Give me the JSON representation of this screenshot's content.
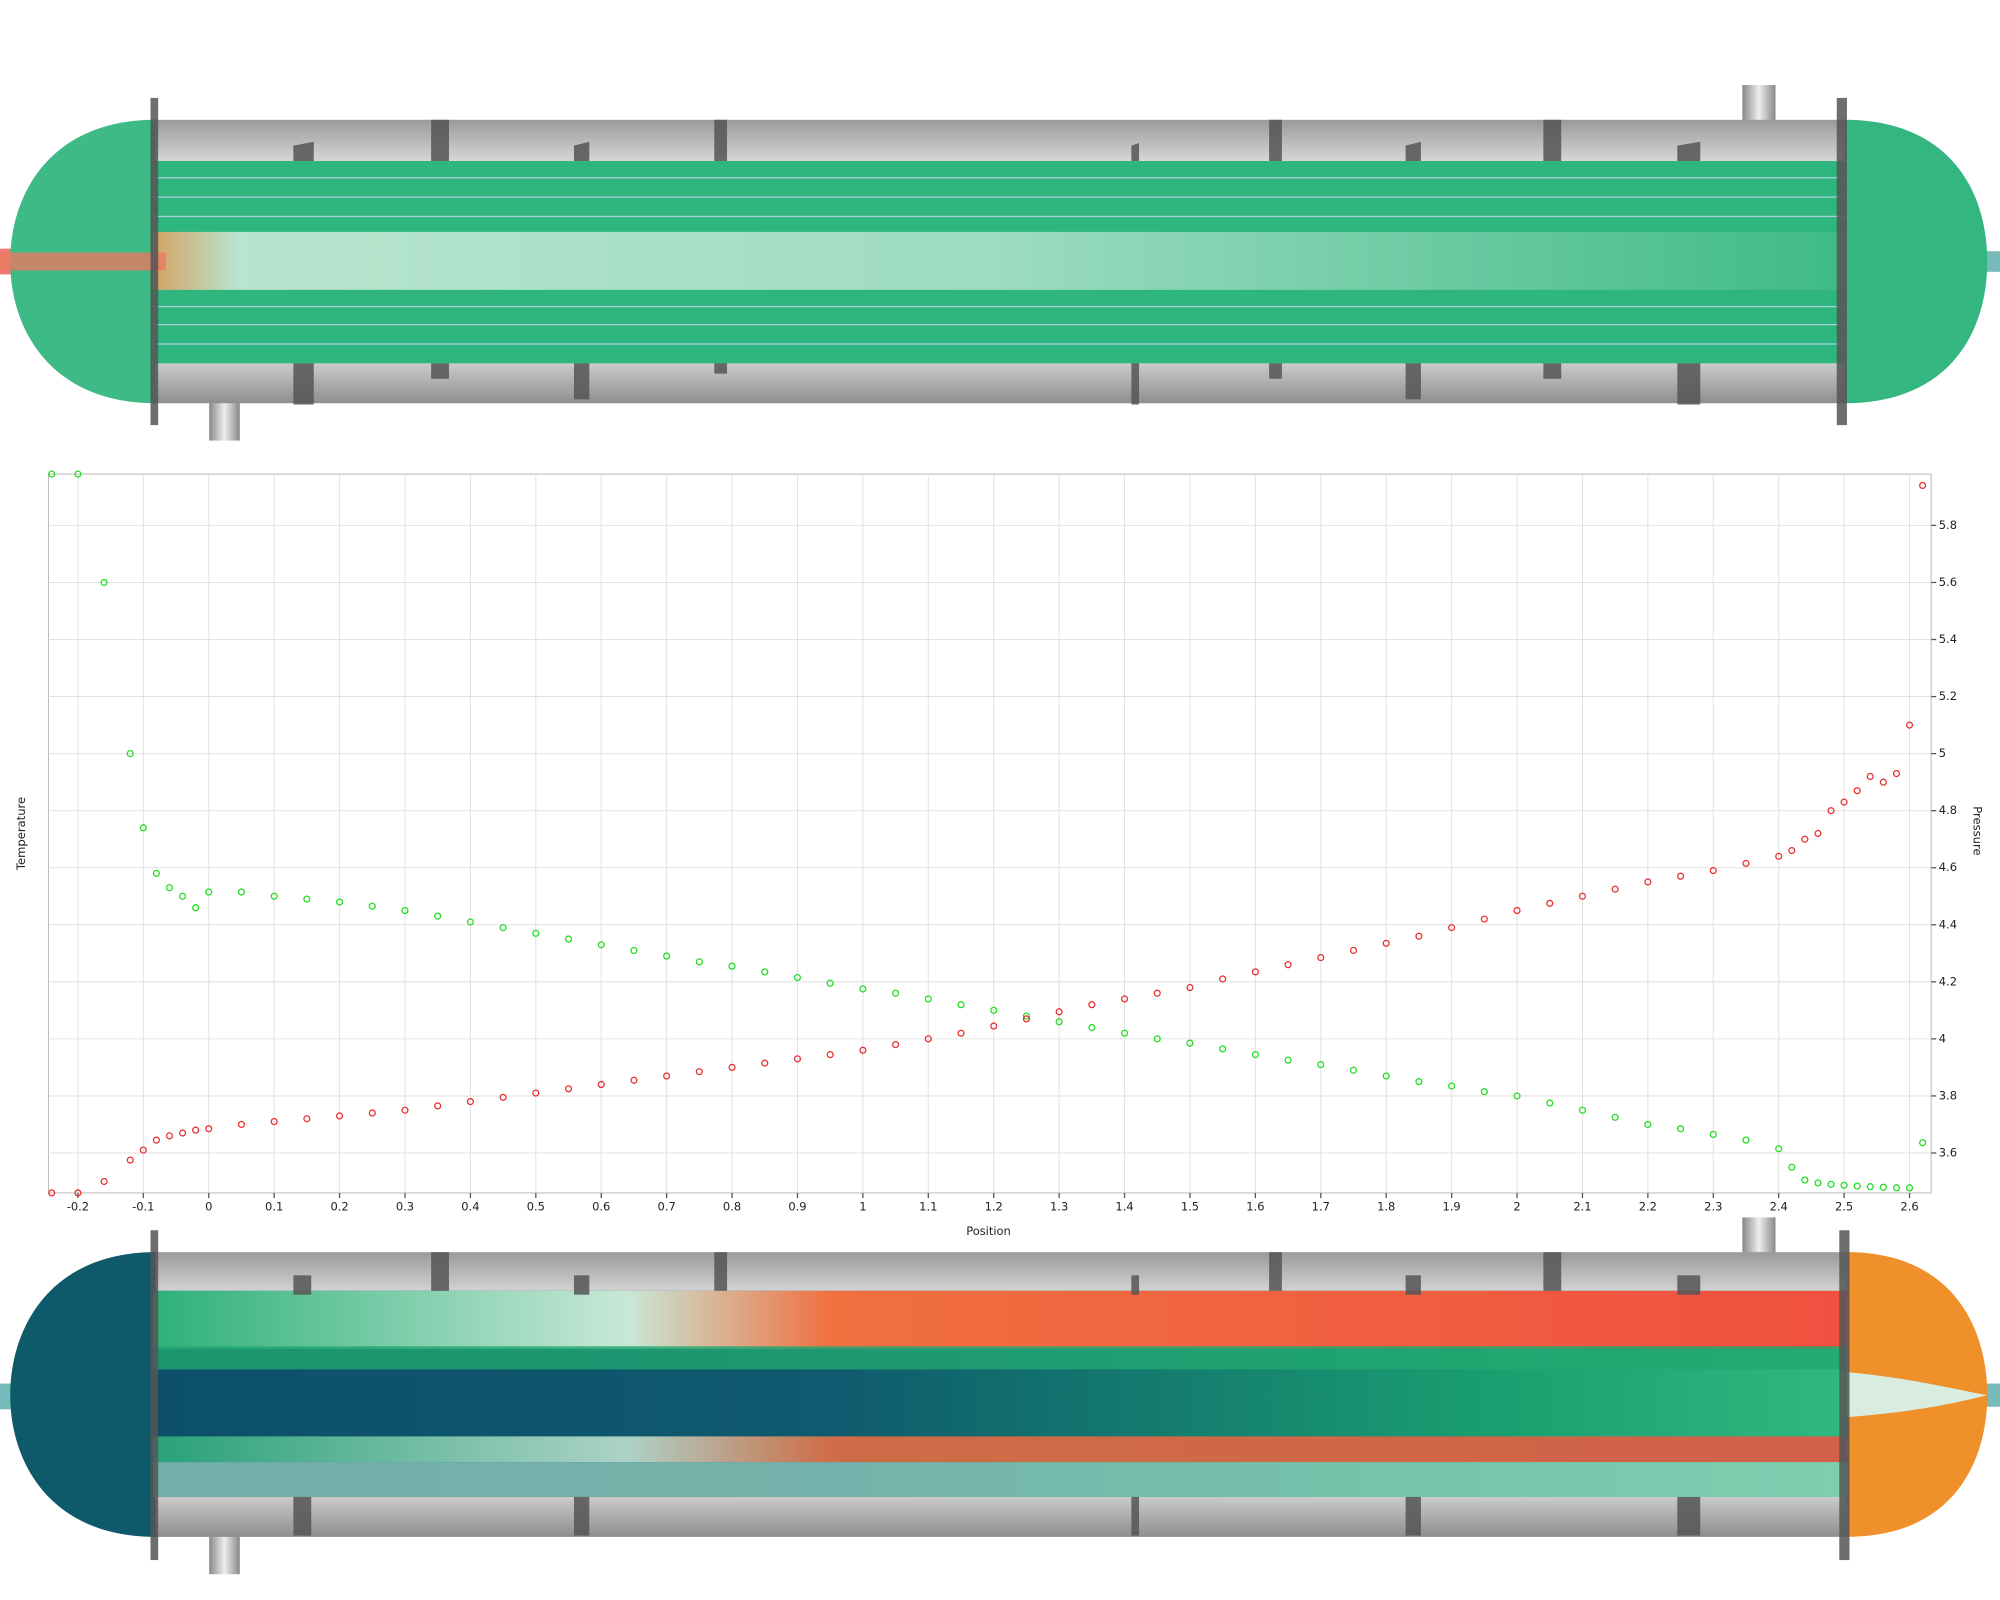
{
  "chart_data": {
    "type": "scatter",
    "x_label": "Position",
    "y_label": "Temperature",
    "y2_label": "Pressure",
    "x": [
      -0.24,
      -0.2,
      -0.16,
      -0.12,
      -0.1,
      -0.08,
      -0.06,
      -0.04,
      -0.02,
      0,
      0.05,
      0.1,
      0.15,
      0.2,
      0.25,
      0.3,
      0.35,
      0.4,
      0.45,
      0.5,
      0.55,
      0.6,
      0.65,
      0.7,
      0.75,
      0.8,
      0.85,
      0.9,
      0.95,
      1,
      1.05,
      1.1,
      1.15,
      1.2,
      1.25,
      1.3,
      1.35,
      1.4,
      1.45,
      1.5,
      1.55,
      1.6,
      1.65,
      1.7,
      1.75,
      1.8,
      1.85,
      1.9,
      1.95,
      2,
      2.05,
      2.1,
      2.15,
      2.2,
      2.25,
      2.3,
      2.35,
      2.4,
      2.42,
      2.44,
      2.46,
      2.48,
      2.5,
      2.52,
      2.54,
      2.56,
      2.58,
      2.6,
      2.62
    ],
    "series": [
      {
        "name": "Temperature",
        "color": "#22dd22",
        "axis": "y",
        "values": [
          5.98,
          5.98,
          5.6,
          5.0,
          4.74,
          4.58,
          4.53,
          4.5,
          4.46,
          4.515,
          4.515,
          4.5,
          4.49,
          4.48,
          4.465,
          4.45,
          4.43,
          4.41,
          4.39,
          4.37,
          4.35,
          4.33,
          4.31,
          4.29,
          4.27,
          4.255,
          4.235,
          4.215,
          4.195,
          4.175,
          4.16,
          4.14,
          4.12,
          4.1,
          4.08,
          4.06,
          4.04,
          4.02,
          4.0,
          3.985,
          3.965,
          3.945,
          3.925,
          3.91,
          3.89,
          3.87,
          3.85,
          3.835,
          3.815,
          3.8,
          3.775,
          3.75,
          3.725,
          3.7,
          3.685,
          3.665,
          3.645,
          3.615,
          3.55,
          3.505,
          3.495,
          3.49,
          3.487,
          3.484,
          3.482,
          3.48,
          3.478,
          3.478,
          3.636
        ]
      },
      {
        "name": "Pressure",
        "color": "#e83030",
        "axis": "y2",
        "values": [
          3.46,
          3.46,
          3.5,
          3.575,
          3.61,
          3.645,
          3.66,
          3.67,
          3.68,
          3.685,
          3.7,
          3.71,
          3.72,
          3.73,
          3.74,
          3.75,
          3.765,
          3.78,
          3.795,
          3.81,
          3.825,
          3.84,
          3.855,
          3.87,
          3.885,
          3.9,
          3.915,
          3.93,
          3.945,
          3.96,
          3.98,
          4.0,
          4.02,
          4.045,
          4.07,
          4.095,
          4.12,
          4.14,
          4.16,
          4.18,
          4.21,
          4.235,
          4.26,
          4.285,
          4.31,
          4.335,
          4.36,
          4.39,
          4.42,
          4.45,
          4.475,
          4.5,
          4.525,
          4.55,
          4.57,
          4.59,
          4.615,
          4.64,
          4.66,
          4.7,
          4.72,
          4.8,
          4.83,
          4.87,
          4.92,
          4.9,
          4.93,
          5.1,
          5.94
        ]
      }
    ],
    "xlim": [
      -0.245,
      2.633
    ],
    "xticks": [
      -0.2,
      -0.1,
      0,
      0.1,
      0.2,
      0.3,
      0.4,
      0.5,
      0.6,
      0.7,
      0.8,
      0.9,
      1,
      1.1,
      1.2,
      1.3,
      1.4,
      1.5,
      1.6,
      1.7,
      1.8,
      1.9,
      2,
      2.1,
      2.2,
      2.3,
      2.4,
      2.5,
      2.6
    ],
    "ylim": [
      3.46,
      5.98
    ],
    "y2lim": [
      3.46,
      5.98
    ],
    "y2ticks": [
      3.6,
      3.8,
      4,
      4.2,
      4.4,
      4.6,
      4.8,
      5,
      5.2,
      5.4,
      5.6,
      5.8
    ],
    "grid": true
  }
}
